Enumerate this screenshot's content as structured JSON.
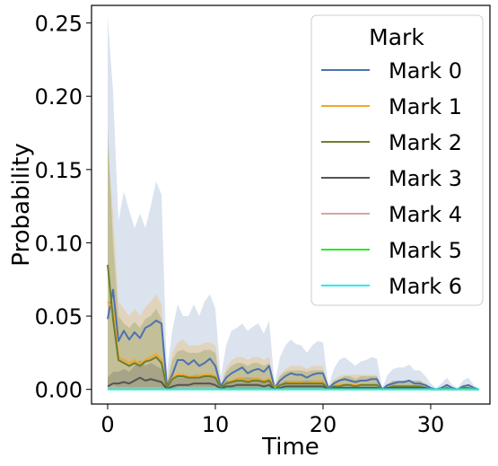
{
  "chart_data": {
    "type": "line",
    "title": "",
    "xlabel": "Time",
    "ylabel": "Probability",
    "xlim": [
      -1.5,
      35.5
    ],
    "ylim": [
      -0.01,
      0.262
    ],
    "xticks": [
      0,
      10,
      20,
      30
    ],
    "yticks": [
      0.0,
      0.05,
      0.1,
      0.15,
      0.2,
      0.25
    ],
    "ytick_labels": [
      "0.00",
      "0.05",
      "0.10",
      "0.15",
      "0.20",
      "0.25"
    ],
    "grid": false,
    "legend": {
      "title": "Mark",
      "placement": "top-right"
    },
    "x": [
      0,
      0.5,
      1,
      1.5,
      2,
      2.5,
      3,
      3.5,
      4,
      4.5,
      5,
      5.5,
      6,
      6.5,
      7,
      7.5,
      8,
      8.5,
      9,
      9.5,
      10,
      10.5,
      11,
      11.5,
      12,
      12.5,
      13,
      13.5,
      14,
      14.5,
      15,
      15.5,
      16,
      16.5,
      17,
      17.5,
      18,
      18.5,
      19,
      19.5,
      20,
      20.5,
      21,
      21.5,
      22,
      22.5,
      23,
      23.5,
      24,
      24.5,
      25,
      25.5,
      26,
      26.5,
      27,
      27.5,
      28,
      28.5,
      29,
      29.5,
      30,
      30.5,
      31,
      31.5,
      32,
      32.5,
      33,
      33.5,
      34,
      34.5
    ],
    "series": [
      {
        "name": "Mark 0",
        "color": "#4c72b0",
        "values": [
          0.048,
          0.068,
          0.033,
          0.04,
          0.034,
          0.039,
          0.035,
          0.042,
          0.044,
          0.047,
          0.045,
          0.002,
          0.01,
          0.02,
          0.02,
          0.017,
          0.02,
          0.016,
          0.018,
          0.021,
          0.016,
          0.002,
          0.008,
          0.011,
          0.013,
          0.015,
          0.011,
          0.013,
          0.014,
          0.012,
          0.016,
          0.001,
          0.006,
          0.009,
          0.011,
          0.01,
          0.01,
          0.008,
          0.01,
          0.011,
          0.011,
          0.001,
          0.004,
          0.006,
          0.007,
          0.006,
          0.005,
          0.006,
          0.006,
          0.007,
          0.007,
          0.0,
          0.003,
          0.004,
          0.005,
          0.005,
          0.006,
          0.004,
          0.004,
          0.003,
          0.001,
          0.0,
          0.001,
          0.003,
          0.001,
          0.0,
          0.002,
          0.003,
          0.001,
          0.0
        ],
        "lower": [
          0.002,
          0.004,
          0.0,
          0.0,
          0.0,
          0.0,
          0.0,
          0.0,
          0.0,
          0.0,
          0.0,
          0.0,
          0.0,
          0.0,
          0.0,
          0.0,
          0.0,
          0.0,
          0.0,
          0.0,
          0.0,
          0.0,
          0.0,
          0.0,
          0.0,
          0.0,
          0.0,
          0.0,
          0.0,
          0.0,
          0.0,
          0.0,
          0.0,
          0.0,
          0.0,
          0.0,
          0.0,
          0.0,
          0.0,
          0.0,
          0.0,
          0.0,
          0.0,
          0.0,
          0.0,
          0.0,
          0.0,
          0.0,
          0.0,
          0.0,
          0.0,
          0.0,
          0.0,
          0.0,
          0.0,
          0.0,
          0.0,
          0.0,
          0.0,
          0.0,
          0.0,
          0.0,
          0.0,
          0.0,
          0.0,
          0.0,
          0.0,
          0.0,
          0.0,
          0.0
        ],
        "upper": [
          0.254,
          0.203,
          0.115,
          0.135,
          0.122,
          0.11,
          0.12,
          0.11,
          0.125,
          0.142,
          0.133,
          0.012,
          0.04,
          0.058,
          0.05,
          0.05,
          0.058,
          0.05,
          0.06,
          0.065,
          0.055,
          0.008,
          0.03,
          0.04,
          0.042,
          0.045,
          0.04,
          0.043,
          0.045,
          0.038,
          0.047,
          0.003,
          0.022,
          0.03,
          0.034,
          0.031,
          0.03,
          0.025,
          0.03,
          0.033,
          0.032,
          0.002,
          0.014,
          0.02,
          0.022,
          0.019,
          0.016,
          0.019,
          0.02,
          0.022,
          0.021,
          0.001,
          0.01,
          0.014,
          0.015,
          0.015,
          0.017,
          0.013,
          0.013,
          0.009,
          0.004,
          0.001,
          0.004,
          0.008,
          0.003,
          0.001,
          0.006,
          0.008,
          0.003,
          0.0
        ]
      },
      {
        "name": "Mark 1",
        "color": "#f5a623",
        "values": [
          0.06,
          0.055,
          0.022,
          0.02,
          0.018,
          0.02,
          0.017,
          0.02,
          0.022,
          0.024,
          0.02,
          0.001,
          0.008,
          0.01,
          0.01,
          0.009,
          0.009,
          0.009,
          0.01,
          0.01,
          0.009,
          0.001,
          0.004,
          0.006,
          0.007,
          0.007,
          0.006,
          0.007,
          0.007,
          0.006,
          0.007,
          0.001,
          0.003,
          0.004,
          0.005,
          0.005,
          0.005,
          0.004,
          0.005,
          0.005,
          0.005,
          0.0,
          0.002,
          0.003,
          0.003,
          0.003,
          0.003,
          0.003,
          0.003,
          0.003,
          0.003,
          0.0,
          0.001,
          0.002,
          0.002,
          0.002,
          0.002,
          0.002,
          0.002,
          0.001,
          0.0,
          0.0,
          0.0,
          0.001,
          0.0,
          0.0,
          0.001,
          0.001,
          0.0,
          0.0
        ],
        "lower": [
          0.0,
          0.0,
          0.0,
          0.0,
          0.0,
          0.0,
          0.0,
          0.0,
          0.0,
          0.0,
          0.0,
          0.0,
          0.0,
          0.0,
          0.0,
          0.0,
          0.0,
          0.0,
          0.0,
          0.0,
          0.0,
          0.0,
          0.0,
          0.0,
          0.0,
          0.0,
          0.0,
          0.0,
          0.0,
          0.0,
          0.0,
          0.0,
          0.0,
          0.0,
          0.0,
          0.0,
          0.0,
          0.0,
          0.0,
          0.0,
          0.0,
          0.0,
          0.0,
          0.0,
          0.0,
          0.0,
          0.0,
          0.0,
          0.0,
          0.0,
          0.0,
          0.0,
          0.0,
          0.0,
          0.0,
          0.0,
          0.0,
          0.0,
          0.0,
          0.0,
          0.0,
          0.0,
          0.0,
          0.0,
          0.0,
          0.0,
          0.0,
          0.0,
          0.0,
          0.0
        ],
        "upper": [
          0.165,
          0.12,
          0.06,
          0.055,
          0.05,
          0.055,
          0.05,
          0.056,
          0.06,
          0.065,
          0.058,
          0.004,
          0.025,
          0.032,
          0.034,
          0.03,
          0.03,
          0.03,
          0.032,
          0.032,
          0.03,
          0.003,
          0.015,
          0.02,
          0.022,
          0.022,
          0.02,
          0.022,
          0.022,
          0.02,
          0.022,
          0.002,
          0.01,
          0.014,
          0.016,
          0.016,
          0.016,
          0.014,
          0.016,
          0.016,
          0.016,
          0.001,
          0.007,
          0.009,
          0.01,
          0.01,
          0.01,
          0.01,
          0.01,
          0.01,
          0.01,
          0.0,
          0.004,
          0.006,
          0.006,
          0.006,
          0.006,
          0.006,
          0.006,
          0.004,
          0.001,
          0.0,
          0.001,
          0.003,
          0.001,
          0.0,
          0.003,
          0.003,
          0.001,
          0.0
        ]
      },
      {
        "name": "Mark 2",
        "color": "#6b7f2e",
        "values": [
          0.085,
          0.048,
          0.02,
          0.018,
          0.016,
          0.018,
          0.016,
          0.019,
          0.02,
          0.022,
          0.018,
          0.001,
          0.007,
          0.009,
          0.009,
          0.008,
          0.008,
          0.008,
          0.009,
          0.009,
          0.008,
          0.001,
          0.004,
          0.005,
          0.006,
          0.006,
          0.005,
          0.006,
          0.006,
          0.005,
          0.006,
          0.0,
          0.003,
          0.004,
          0.004,
          0.004,
          0.004,
          0.004,
          0.004,
          0.004,
          0.004,
          0.0,
          0.002,
          0.002,
          0.003,
          0.003,
          0.002,
          0.003,
          0.003,
          0.003,
          0.003,
          0.0,
          0.001,
          0.002,
          0.002,
          0.002,
          0.002,
          0.002,
          0.002,
          0.001,
          0.0,
          0.0,
          0.0,
          0.001,
          0.0,
          0.0,
          0.001,
          0.001,
          0.0,
          0.0
        ],
        "lower": [
          0.0,
          0.0,
          0.0,
          0.0,
          0.0,
          0.0,
          0.0,
          0.0,
          0.0,
          0.0,
          0.0,
          0.0,
          0.0,
          0.0,
          0.0,
          0.0,
          0.0,
          0.0,
          0.0,
          0.0,
          0.0,
          0.0,
          0.0,
          0.0,
          0.0,
          0.0,
          0.0,
          0.0,
          0.0,
          0.0,
          0.0,
          0.0,
          0.0,
          0.0,
          0.0,
          0.0,
          0.0,
          0.0,
          0.0,
          0.0,
          0.0,
          0.0,
          0.0,
          0.0,
          0.0,
          0.0,
          0.0,
          0.0,
          0.0,
          0.0,
          0.0,
          0.0,
          0.0,
          0.0,
          0.0,
          0.0,
          0.0,
          0.0,
          0.0,
          0.0,
          0.0,
          0.0,
          0.0,
          0.0,
          0.0,
          0.0,
          0.0,
          0.0,
          0.0,
          0.0
        ],
        "upper": [
          0.18,
          0.1,
          0.05,
          0.045,
          0.042,
          0.046,
          0.042,
          0.048,
          0.05,
          0.055,
          0.048,
          0.003,
          0.02,
          0.026,
          0.027,
          0.025,
          0.025,
          0.025,
          0.027,
          0.027,
          0.025,
          0.002,
          0.012,
          0.016,
          0.018,
          0.018,
          0.016,
          0.018,
          0.018,
          0.016,
          0.018,
          0.001,
          0.009,
          0.012,
          0.013,
          0.013,
          0.013,
          0.012,
          0.013,
          0.013,
          0.013,
          0.0,
          0.006,
          0.007,
          0.009,
          0.009,
          0.007,
          0.009,
          0.009,
          0.009,
          0.009,
          0.0,
          0.003,
          0.006,
          0.006,
          0.006,
          0.006,
          0.006,
          0.006,
          0.003,
          0.0,
          0.0,
          0.0,
          0.003,
          0.0,
          0.0,
          0.003,
          0.003,
          0.0,
          0.0
        ]
      },
      {
        "name": "Mark 3",
        "color": "#555555",
        "values": [
          0.002,
          0.004,
          0.004,
          0.005,
          0.004,
          0.006,
          0.008,
          0.006,
          0.007,
          0.006,
          0.005,
          0.0,
          0.002,
          0.003,
          0.003,
          0.003,
          0.004,
          0.004,
          0.004,
          0.004,
          0.003,
          0.0,
          0.002,
          0.002,
          0.003,
          0.003,
          0.003,
          0.003,
          0.003,
          0.002,
          0.003,
          0.0,
          0.001,
          0.002,
          0.002,
          0.002,
          0.002,
          0.002,
          0.002,
          0.002,
          0.002,
          0.0,
          0.001,
          0.001,
          0.001,
          0.001,
          0.001,
          0.001,
          0.001,
          0.001,
          0.001,
          0.0,
          0.001,
          0.001,
          0.001,
          0.001,
          0.001,
          0.001,
          0.001,
          0.001,
          0.0,
          0.0,
          0.0,
          0.0,
          0.0,
          0.0,
          0.0,
          0.0,
          0.0,
          0.0
        ],
        "lower": [
          0.0,
          0.0,
          0.0,
          0.0,
          0.0,
          0.0,
          0.0,
          0.0,
          0.0,
          0.0,
          0.0,
          0.0,
          0.0,
          0.0,
          0.0,
          0.0,
          0.0,
          0.0,
          0.0,
          0.0,
          0.0,
          0.0,
          0.0,
          0.0,
          0.0,
          0.0,
          0.0,
          0.0,
          0.0,
          0.0,
          0.0,
          0.0,
          0.0,
          0.0,
          0.0,
          0.0,
          0.0,
          0.0,
          0.0,
          0.0,
          0.0,
          0.0,
          0.0,
          0.0,
          0.0,
          0.0,
          0.0,
          0.0,
          0.0,
          0.0,
          0.0,
          0.0,
          0.0,
          0.0,
          0.0,
          0.0,
          0.0,
          0.0,
          0.0,
          0.0,
          0.0,
          0.0,
          0.0,
          0.0,
          0.0,
          0.0,
          0.0,
          0.0,
          0.0,
          0.0
        ],
        "upper": [
          0.008,
          0.012,
          0.012,
          0.014,
          0.012,
          0.016,
          0.02,
          0.016,
          0.018,
          0.016,
          0.014,
          0.0,
          0.006,
          0.008,
          0.008,
          0.008,
          0.01,
          0.01,
          0.01,
          0.01,
          0.008,
          0.0,
          0.006,
          0.006,
          0.008,
          0.008,
          0.008,
          0.008,
          0.008,
          0.006,
          0.008,
          0.0,
          0.003,
          0.006,
          0.006,
          0.006,
          0.006,
          0.006,
          0.006,
          0.006,
          0.006,
          0.0,
          0.003,
          0.003,
          0.003,
          0.003,
          0.003,
          0.003,
          0.003,
          0.003,
          0.003,
          0.0,
          0.003,
          0.003,
          0.003,
          0.003,
          0.003,
          0.003,
          0.003,
          0.003,
          0.0,
          0.0,
          0.0,
          0.0,
          0.0,
          0.0,
          0.0,
          0.0,
          0.0,
          0.0
        ]
      },
      {
        "name": "Mark 4",
        "color": "#d4a89a",
        "values": [
          0.001,
          0.001,
          0.001,
          0.001,
          0.001,
          0.001,
          0.001,
          0.001,
          0.001,
          0.001,
          0.001,
          0.0,
          0.0,
          0.001,
          0.001,
          0.001,
          0.001,
          0.001,
          0.001,
          0.001,
          0.001,
          0.0,
          0.0,
          0.0,
          0.0,
          0.0,
          0.0,
          0.0,
          0.0,
          0.0,
          0.0,
          0.0,
          0.0,
          0.0,
          0.0,
          0.0,
          0.0,
          0.0,
          0.0,
          0.0,
          0.0,
          0.0,
          0.0,
          0.0,
          0.0,
          0.0,
          0.0,
          0.0,
          0.0,
          0.0,
          0.0,
          0.0,
          0.0,
          0.0,
          0.0,
          0.0,
          0.0,
          0.0,
          0.0,
          0.0,
          0.0,
          0.0,
          0.0,
          0.0,
          0.0,
          0.0,
          0.0,
          0.0,
          0.0,
          0.0
        ]
      },
      {
        "name": "Mark 5",
        "color": "#22ee22",
        "values": [
          0.0,
          0.0,
          0.0,
          0.0,
          0.0,
          0.0,
          0.0,
          0.0,
          0.0,
          0.0,
          0.0,
          0.0,
          0.0,
          0.0,
          0.0,
          0.0,
          0.0,
          0.0,
          0.0,
          0.0,
          0.0,
          0.0,
          0.0,
          0.0,
          0.0,
          0.0,
          0.0,
          0.0,
          0.0,
          0.0,
          0.0,
          0.0,
          0.0,
          0.0,
          0.0,
          0.0,
          0.0,
          0.0,
          0.0,
          0.0,
          0.0,
          0.0,
          0.0,
          0.0,
          0.0,
          0.0,
          0.0,
          0.0,
          0.0,
          0.0,
          0.0,
          0.0,
          0.0,
          0.0,
          0.0,
          0.0,
          0.0,
          0.0,
          0.0,
          0.0,
          0.0,
          0.0,
          0.0,
          0.0,
          0.0,
          0.0,
          0.0,
          0.0,
          0.0,
          0.0
        ]
      },
      {
        "name": "Mark 6",
        "color": "#22eeee",
        "values": [
          0.0,
          0.0,
          0.0,
          0.0,
          0.0,
          0.0,
          0.0,
          0.0,
          0.0,
          0.0,
          0.0,
          0.0,
          0.0,
          0.0,
          0.0,
          0.0,
          0.0,
          0.0,
          0.0,
          0.0,
          0.0,
          0.0,
          0.0,
          0.0,
          0.0,
          0.0,
          0.0,
          0.0,
          0.0,
          0.0,
          0.0,
          0.0,
          0.0,
          0.0,
          0.0,
          0.0,
          0.0,
          0.0,
          0.0,
          0.0,
          0.0,
          0.0,
          0.0,
          0.0,
          0.0,
          0.0,
          0.0,
          0.0,
          0.0,
          0.0,
          0.0,
          0.0,
          0.0,
          0.0,
          0.0,
          0.0,
          0.0,
          0.0,
          0.0,
          0.0,
          0.0,
          0.0,
          0.0,
          0.0,
          0.0,
          0.0,
          0.0,
          0.0,
          0.0,
          0.0
        ]
      }
    ]
  }
}
